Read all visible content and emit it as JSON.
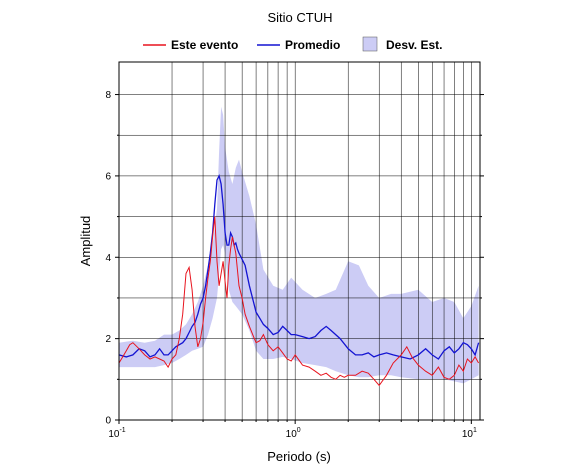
{
  "chart_data": {
    "type": "line",
    "title": "Sitio CTUH",
    "xlabel": "Periodo (s)",
    "ylabel": "Amplitud",
    "xscale": "log",
    "xlim": [
      0.1,
      11.2
    ],
    "ylim": [
      0,
      8.8
    ],
    "x_ticks": [
      {
        "base": "10",
        "exp": "-1",
        "value": 0.1
      },
      {
        "base": "10",
        "exp": "0",
        "value": 1
      },
      {
        "base": "10",
        "exp": "1",
        "value": 10
      }
    ],
    "y_ticks": [
      "0",
      "2",
      "4",
      "6",
      "8"
    ],
    "grid": true,
    "legend_position": "top",
    "legend": {
      "event": "Este evento",
      "mean": "Promedio",
      "band": "Desv. Est."
    },
    "colors": {
      "event": "#e8141e",
      "mean": "#1414d2",
      "band": "#ccccf5"
    },
    "series": [
      {
        "name": "Este evento",
        "x": [
          0.1,
          0.105,
          0.11,
          0.115,
          0.12,
          0.13,
          0.14,
          0.15,
          0.16,
          0.17,
          0.18,
          0.19,
          0.2,
          0.21,
          0.22,
          0.23,
          0.24,
          0.25,
          0.26,
          0.27,
          0.28,
          0.29,
          0.3,
          0.31,
          0.32,
          0.33,
          0.34,
          0.35,
          0.36,
          0.37,
          0.38,
          0.39,
          0.4,
          0.41,
          0.42,
          0.43,
          0.44,
          0.45,
          0.46,
          0.47,
          0.48,
          0.5,
          0.52,
          0.55,
          0.58,
          0.6,
          0.63,
          0.66,
          0.7,
          0.75,
          0.8,
          0.85,
          0.9,
          0.95,
          1.0,
          1.1,
          1.2,
          1.3,
          1.4,
          1.5,
          1.6,
          1.7,
          1.8,
          1.9,
          2.0,
          2.2,
          2.4,
          2.6,
          2.8,
          3.0,
          3.3,
          3.6,
          4.0,
          4.3,
          4.6,
          5.0,
          5.5,
          6.0,
          6.5,
          7.0,
          7.5,
          8.0,
          8.5,
          9.0,
          9.5,
          10.0,
          10.5,
          11.0
        ],
        "y": [
          1.4,
          1.55,
          1.7,
          1.85,
          1.9,
          1.75,
          1.6,
          1.5,
          1.55,
          1.5,
          1.45,
          1.3,
          1.5,
          1.6,
          2.0,
          2.6,
          3.6,
          3.75,
          3.2,
          2.3,
          1.8,
          2.0,
          2.4,
          3.0,
          3.5,
          3.9,
          4.5,
          5.0,
          3.9,
          3.3,
          3.6,
          3.9,
          3.4,
          3.0,
          3.8,
          4.2,
          4.5,
          4.3,
          4.1,
          3.7,
          3.3,
          3.0,
          2.6,
          2.3,
          2.05,
          1.9,
          1.95,
          2.1,
          1.85,
          1.7,
          1.8,
          1.65,
          1.5,
          1.45,
          1.6,
          1.35,
          1.3,
          1.2,
          1.1,
          1.15,
          1.05,
          1.0,
          1.1,
          1.05,
          1.1,
          1.1,
          1.2,
          1.15,
          1.0,
          0.85,
          1.1,
          1.4,
          1.6,
          1.8,
          1.55,
          1.35,
          1.2,
          1.1,
          1.3,
          1.05,
          1.0,
          1.1,
          1.35,
          1.2,
          1.5,
          1.4,
          1.55,
          1.4
        ]
      },
      {
        "name": "Promedio",
        "x": [
          0.1,
          0.11,
          0.12,
          0.13,
          0.14,
          0.15,
          0.16,
          0.17,
          0.18,
          0.19,
          0.2,
          0.21,
          0.22,
          0.23,
          0.24,
          0.25,
          0.26,
          0.27,
          0.28,
          0.29,
          0.3,
          0.31,
          0.32,
          0.33,
          0.34,
          0.35,
          0.36,
          0.37,
          0.38,
          0.39,
          0.4,
          0.41,
          0.42,
          0.43,
          0.44,
          0.45,
          0.46,
          0.47,
          0.48,
          0.5,
          0.52,
          0.55,
          0.58,
          0.6,
          0.63,
          0.66,
          0.7,
          0.75,
          0.8,
          0.85,
          0.9,
          0.95,
          1.0,
          1.1,
          1.2,
          1.3,
          1.4,
          1.5,
          1.6,
          1.8,
          2.0,
          2.2,
          2.4,
          2.6,
          2.8,
          3.0,
          3.3,
          3.6,
          4.0,
          4.5,
          5.0,
          5.5,
          6.0,
          6.5,
          7.0,
          7.5,
          8.0,
          8.5,
          9.0,
          9.5,
          10.0,
          10.5,
          11.0
        ],
        "y": [
          1.6,
          1.55,
          1.6,
          1.75,
          1.7,
          1.55,
          1.6,
          1.75,
          1.6,
          1.6,
          1.7,
          1.8,
          1.85,
          1.9,
          2.0,
          2.15,
          2.3,
          2.4,
          2.6,
          2.85,
          3.0,
          3.3,
          3.7,
          4.1,
          4.6,
          5.3,
          5.9,
          6.0,
          5.8,
          5.3,
          4.6,
          4.3,
          4.3,
          4.6,
          4.5,
          4.3,
          4.35,
          4.2,
          4.1,
          3.95,
          3.8,
          3.3,
          2.9,
          2.65,
          2.5,
          2.35,
          2.25,
          2.1,
          2.15,
          2.3,
          2.2,
          2.1,
          2.1,
          2.05,
          2.0,
          2.05,
          2.2,
          2.3,
          2.2,
          2.0,
          1.75,
          1.6,
          1.6,
          1.65,
          1.55,
          1.6,
          1.65,
          1.6,
          1.55,
          1.5,
          1.6,
          1.75,
          1.6,
          1.5,
          1.7,
          1.8,
          1.65,
          1.75,
          1.9,
          1.85,
          1.75,
          1.6,
          1.9
        ]
      }
    ],
    "band": {
      "name": "Desv. Est.",
      "x": [
        0.1,
        0.12,
        0.14,
        0.16,
        0.18,
        0.2,
        0.22,
        0.24,
        0.26,
        0.28,
        0.3,
        0.32,
        0.34,
        0.36,
        0.37,
        0.38,
        0.39,
        0.4,
        0.42,
        0.44,
        0.46,
        0.48,
        0.5,
        0.55,
        0.6,
        0.66,
        0.75,
        0.85,
        0.95,
        1.1,
        1.3,
        1.5,
        1.7,
        2.0,
        2.3,
        2.6,
        3.0,
        3.5,
        4.0,
        5.0,
        6.0,
        7.0,
        8.0,
        9.0,
        10.0,
        11.0
      ],
      "upper": [
        1.9,
        1.95,
        1.9,
        1.95,
        2.1,
        2.1,
        2.2,
        2.35,
        2.6,
        2.9,
        3.3,
        3.8,
        4.3,
        5.2,
        6.6,
        7.7,
        7.5,
        6.7,
        6.1,
        5.8,
        6.2,
        6.4,
        6.1,
        5.5,
        4.8,
        3.7,
        3.3,
        3.2,
        3.5,
        3.2,
        3.0,
        3.1,
        3.2,
        3.9,
        3.8,
        3.3,
        3.0,
        3.1,
        3.1,
        3.2,
        2.9,
        3.0,
        2.9,
        2.5,
        2.8,
        3.3
      ],
      "lower": [
        1.3,
        1.3,
        1.3,
        1.3,
        1.35,
        1.4,
        1.5,
        1.6,
        1.7,
        1.75,
        1.8,
        2.1,
        2.5,
        3.0,
        3.6,
        4.2,
        4.3,
        4.1,
        3.2,
        2.9,
        2.8,
        2.7,
        2.6,
        2.2,
        1.7,
        1.5,
        1.5,
        1.55,
        1.5,
        1.4,
        1.35,
        1.3,
        1.2,
        1.1,
        1.05,
        1.05,
        1.1,
        1.1,
        1.05,
        1.0,
        1.0,
        1.0,
        0.95,
        0.9,
        1.0,
        1.1
      ]
    }
  }
}
